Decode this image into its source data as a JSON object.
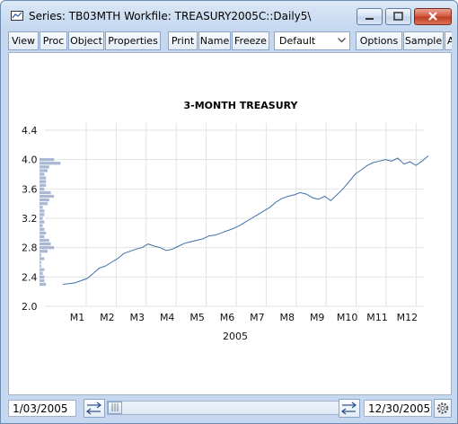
{
  "window": {
    "title": "Series: TB03MTH   Workfile: TREASURY2005C::Daily5\\"
  },
  "toolbar": {
    "buttons": [
      "View",
      "Proc",
      "Object",
      "Properties",
      "Print",
      "Name",
      "Freeze",
      "Options",
      "Sample",
      "A"
    ],
    "dropdown_value": "Default"
  },
  "chart_data": {
    "type": "line",
    "title": "3-MONTH TREASURY",
    "xlabel": "2005",
    "ylabel": "",
    "ylim": [
      2.0,
      4.4
    ],
    "yticks": [
      "4.4",
      "4.0",
      "3.6",
      "3.2",
      "2.8",
      "2.4",
      "2.0"
    ],
    "yticks_values": [
      4.4,
      4.0,
      3.6,
      3.2,
      2.8,
      2.4,
      2.0
    ],
    "xlim": [
      0,
      12
    ],
    "xticks": [
      "M1",
      "M2",
      "M3",
      "M4",
      "M5",
      "M6",
      "M7",
      "M8",
      "M9",
      "M10",
      "M11",
      "M12"
    ],
    "grid": true,
    "series": [
      {
        "x": [
          0.0,
          0.2,
          0.4,
          0.6,
          0.8,
          1.0,
          1.2,
          1.4,
          1.6,
          1.8,
          2.0,
          2.2,
          2.4,
          2.6,
          2.8,
          3.0,
          3.2,
          3.4,
          3.6,
          3.8,
          4.0,
          4.2,
          4.4,
          4.6,
          4.8,
          5.0,
          5.2,
          5.4,
          5.6,
          5.8,
          6.0,
          6.2,
          6.4,
          6.6,
          6.8,
          7.0,
          7.2,
          7.4,
          7.6,
          7.8,
          8.0,
          8.2,
          8.4,
          8.6,
          8.8,
          9.0,
          9.2,
          9.4,
          9.6,
          9.8,
          10.0,
          10.2,
          10.4,
          10.6,
          10.8,
          11.0,
          11.2,
          11.4,
          11.6,
          11.8,
          12.0
        ],
        "values": [
          2.3,
          2.31,
          2.32,
          2.35,
          2.38,
          2.45,
          2.52,
          2.55,
          2.6,
          2.65,
          2.72,
          2.75,
          2.78,
          2.8,
          2.85,
          2.82,
          2.8,
          2.76,
          2.78,
          2.82,
          2.86,
          2.88,
          2.9,
          2.92,
          2.96,
          2.97,
          3.0,
          3.03,
          3.06,
          3.1,
          3.15,
          3.2,
          3.25,
          3.3,
          3.35,
          3.42,
          3.47,
          3.5,
          3.52,
          3.55,
          3.53,
          3.48,
          3.46,
          3.5,
          3.44,
          3.52,
          3.6,
          3.7,
          3.8,
          3.86,
          3.92,
          3.96,
          3.98,
          4.0,
          3.98,
          4.02,
          3.94,
          3.97,
          3.92,
          3.98,
          4.05
        ]
      }
    ],
    "histogram": {
      "bins": [
        2.3,
        2.35,
        2.4,
        2.45,
        2.5,
        2.55,
        2.6,
        2.65,
        2.7,
        2.75,
        2.8,
        2.85,
        2.9,
        2.95,
        3.0,
        3.05,
        3.1,
        3.15,
        3.2,
        3.25,
        3.3,
        3.35,
        3.4,
        3.45,
        3.5,
        3.55,
        3.6,
        3.65,
        3.7,
        3.75,
        3.8,
        3.85,
        3.9,
        3.95,
        4.0
      ],
      "counts": [
        4,
        3,
        3,
        2,
        3,
        1,
        1,
        3,
        1,
        5,
        9,
        7,
        6,
        3,
        4,
        3,
        2,
        3,
        2,
        3,
        3,
        2,
        5,
        6,
        9,
        7,
        3,
        4,
        4,
        4,
        3,
        5,
        6,
        13,
        9
      ]
    },
    "line_color": "#3f6fa8",
    "hist_color": "#aab8d4"
  },
  "status": {
    "start_date": "1/03/2005",
    "end_date": "12/30/2005"
  },
  "icons": {
    "title": "series-icon",
    "swap": "swap-arrows-icon",
    "gear": "gear-icon"
  }
}
